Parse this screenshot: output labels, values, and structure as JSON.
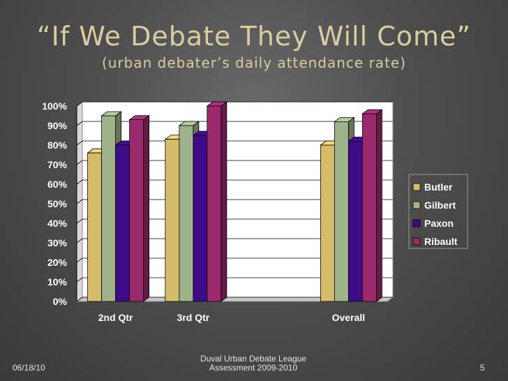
{
  "slide": {
    "title": "“If We Debate They Will Come”",
    "subtitle": "(urban debater’s daily attendance rate)"
  },
  "footer": {
    "date": "06/18/10",
    "center_line1": "Duval Urban Debate League",
    "center_line2": "Assessment 2009-2010",
    "page": "5"
  },
  "colors": {
    "Butler": "#d4bc6a",
    "Gilbert": "#9fb38a",
    "Paxon": "#3f0a86",
    "Ribault": "#9a2a6c"
  },
  "chart_data": {
    "type": "bar",
    "title": "",
    "xlabel": "",
    "ylabel": "",
    "categories": [
      "2nd Qtr",
      "3rd Qtr",
      "",
      "Overall"
    ],
    "series": [
      {
        "name": "Butler",
        "values": [
          76,
          83,
          null,
          80
        ]
      },
      {
        "name": "Gilbert",
        "values": [
          95,
          90,
          null,
          92
        ]
      },
      {
        "name": "Paxon",
        "values": [
          80,
          85,
          null,
          82
        ]
      },
      {
        "name": "Ribault",
        "values": [
          93,
          100,
          null,
          96
        ]
      }
    ],
    "yticks": [
      "0%",
      "10%",
      "20%",
      "30%",
      "40%",
      "50%",
      "60%",
      "70%",
      "80%",
      "90%",
      "100%"
    ],
    "ylim": [
      0,
      100
    ],
    "grid": true,
    "legend": "right"
  }
}
